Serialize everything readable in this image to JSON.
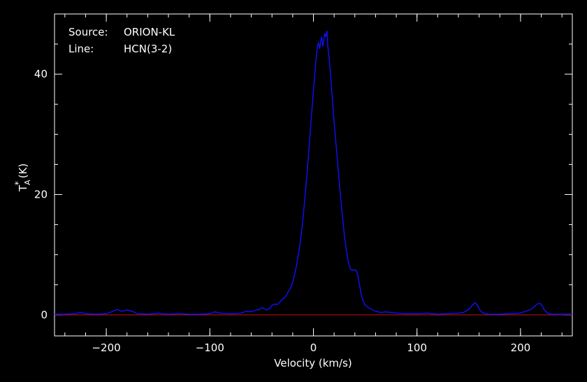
{
  "chart_data": {
    "type": "line",
    "xlabel": "Velocity (km/s)",
    "ylabel": {
      "main": "T",
      "sub": "A",
      "sup": "*",
      "unit": "(K)"
    },
    "xlim": [
      -250,
      250
    ],
    "ylim": [
      -3.5,
      50
    ],
    "x_ticks": [
      -200,
      -100,
      0,
      100,
      200
    ],
    "y_ticks": [
      0,
      20,
      40
    ],
    "grid": false,
    "annotations": [
      {
        "key": "Source:",
        "value": "ORION-KL"
      },
      {
        "key": "Line:",
        "value": "HCN(3-2)"
      }
    ],
    "baseline": {
      "y": 0,
      "color": "#d01010"
    },
    "series": [
      {
        "color": "#1010ff",
        "x": [
          -250,
          -240,
          -230,
          -225,
          -220,
          -210,
          -200,
          -195,
          -190,
          -185,
          -180,
          -175,
          -170,
          -160,
          -150,
          -140,
          -130,
          -120,
          -110,
          -100,
          -95,
          -90,
          -80,
          -70,
          -65,
          -60,
          -55,
          -52,
          -50,
          -47,
          -45,
          -42,
          -40,
          -37,
          -35,
          -32,
          -30,
          -27,
          -25,
          -22,
          -20,
          -18,
          -16,
          -14,
          -12,
          -10,
          -8,
          -6,
          -4,
          -2,
          0,
          2,
          4,
          5,
          6,
          7,
          8,
          9,
          10,
          11,
          12,
          13,
          14,
          15,
          16,
          17,
          18,
          20,
          22,
          24,
          26,
          28,
          30,
          32,
          34,
          36,
          38,
          40,
          42,
          44,
          46,
          48,
          50,
          55,
          60,
          65,
          70,
          80,
          90,
          100,
          110,
          120,
          130,
          140,
          145,
          150,
          153,
          156,
          158,
          160,
          163,
          166,
          170,
          180,
          190,
          200,
          205,
          210,
          213,
          216,
          219,
          221,
          223,
          226,
          230,
          240,
          250
        ],
        "y": [
          0.1,
          0.1,
          0.2,
          0.4,
          0.2,
          0.1,
          0.2,
          0.5,
          0.9,
          0.6,
          0.8,
          0.6,
          0.2,
          0.1,
          0.3,
          0.1,
          0.2,
          0.1,
          0.1,
          0.2,
          0.5,
          0.3,
          0.2,
          0.3,
          0.6,
          0.5,
          0.8,
          0.9,
          1.2,
          1.0,
          0.8,
          1.1,
          1.6,
          1.8,
          1.7,
          2.2,
          2.6,
          3.0,
          3.6,
          4.5,
          5.5,
          6.8,
          8.5,
          10.6,
          13.0,
          16.2,
          19.8,
          23.8,
          28.3,
          32.8,
          37.2,
          41.5,
          44.8,
          45.2,
          44.2,
          45.4,
          46.2,
          44.6,
          45.6,
          46.8,
          46.2,
          47.2,
          44.5,
          43.0,
          41.0,
          38.8,
          36.5,
          32.0,
          28.0,
          24.0,
          20.0,
          16.5,
          13.0,
          10.5,
          8.5,
          7.5,
          7.4,
          7.5,
          7.2,
          5.5,
          3.5,
          2.3,
          1.6,
          1.0,
          0.6,
          0.4,
          0.5,
          0.3,
          0.2,
          0.2,
          0.3,
          0.1,
          0.2,
          0.3,
          0.4,
          0.9,
          1.5,
          2.0,
          1.7,
          1.0,
          0.4,
          0.2,
          0.1,
          0.1,
          0.2,
          0.3,
          0.6,
          0.9,
          1.3,
          1.8,
          1.9,
          1.5,
          0.8,
          0.3,
          0.1,
          0.1,
          0.1
        ]
      }
    ]
  }
}
